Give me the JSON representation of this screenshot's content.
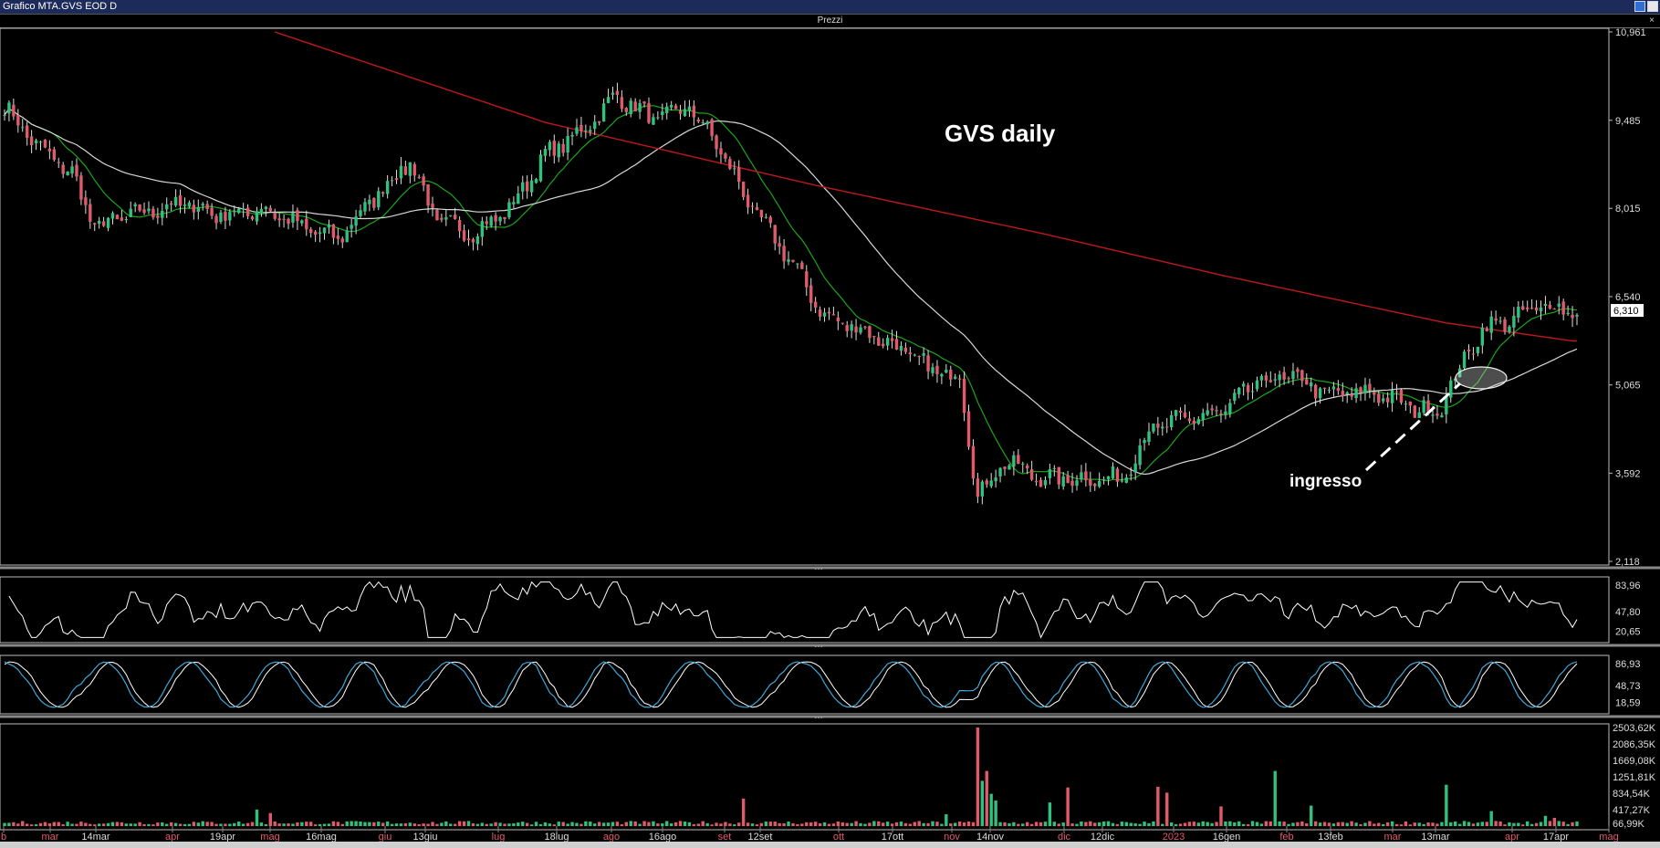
{
  "window": {
    "title": "Grafico MTA.GVS EOD D",
    "panel_title": "Prezzi"
  },
  "annotations": {
    "title": "GVS daily",
    "entry": "ingresso"
  },
  "colors": {
    "up": "#2ec27e",
    "down": "#e05a6a",
    "ma_short": "#1aa51a",
    "ma_mid": "#d8d8d8",
    "ma_long": "#c0181b",
    "osc1": "#ffffff",
    "osc2_a": "#3fa7d6",
    "osc2_b": "#ffffff"
  },
  "chart_data": {
    "type": "candlestick",
    "price_axis": {
      "ticks": [
        "10,961",
        "9,485",
        "8,015",
        "6,540",
        "5,065",
        "3,592",
        "2,118"
      ],
      "min": 2.118,
      "max": 10.961,
      "last_price_label": "6,310",
      "last_price": 6.31
    },
    "dates": [
      "b",
      "mar",
      "14mar",
      "apr",
      "19apr",
      "mag",
      "16mag",
      "giu",
      "13giu",
      "lug",
      "18lug",
      "ago",
      "16ago",
      "set",
      "12set",
      "ott",
      "17ott",
      "nov",
      "14nov",
      "dic",
      "12dic",
      "2023",
      "16gen",
      "feb",
      "13feb",
      "mar",
      "13mar",
      "apr",
      "17apr",
      "mag"
    ],
    "ohlc_anchors": [
      {
        "i": 0,
        "c": 9.7
      },
      {
        "i": 8,
        "c": 9.0
      },
      {
        "i": 15,
        "c": 8.6
      },
      {
        "i": 20,
        "c": 7.7
      },
      {
        "i": 28,
        "c": 7.9
      },
      {
        "i": 40,
        "c": 8.1
      },
      {
        "i": 48,
        "c": 7.9
      },
      {
        "i": 58,
        "c": 8.0
      },
      {
        "i": 66,
        "c": 7.7
      },
      {
        "i": 74,
        "c": 7.5
      },
      {
        "i": 82,
        "c": 8.2
      },
      {
        "i": 90,
        "c": 8.8
      },
      {
        "i": 96,
        "c": 7.8
      },
      {
        "i": 104,
        "c": 7.6
      },
      {
        "i": 112,
        "c": 8.0
      },
      {
        "i": 120,
        "c": 8.9
      },
      {
        "i": 128,
        "c": 9.3
      },
      {
        "i": 136,
        "c": 9.9
      },
      {
        "i": 144,
        "c": 9.5
      },
      {
        "i": 152,
        "c": 9.7
      },
      {
        "i": 158,
        "c": 9.1
      },
      {
        "i": 166,
        "c": 8.0
      },
      {
        "i": 174,
        "c": 7.2
      },
      {
        "i": 182,
        "c": 6.2
      },
      {
        "i": 190,
        "c": 6.0
      },
      {
        "i": 198,
        "c": 5.7
      },
      {
        "i": 206,
        "c": 5.3
      },
      {
        "i": 212,
        "c": 5.2
      },
      {
        "i": 216,
        "c": 3.2
      },
      {
        "i": 222,
        "c": 3.8
      },
      {
        "i": 230,
        "c": 3.5
      },
      {
        "i": 240,
        "c": 3.5
      },
      {
        "i": 248,
        "c": 3.5
      },
      {
        "i": 254,
        "c": 4.3
      },
      {
        "i": 262,
        "c": 4.5
      },
      {
        "i": 270,
        "c": 4.6
      },
      {
        "i": 278,
        "c": 5.1
      },
      {
        "i": 286,
        "c": 5.2
      },
      {
        "i": 294,
        "c": 4.9
      },
      {
        "i": 304,
        "c": 4.95
      },
      {
        "i": 312,
        "c": 4.7
      },
      {
        "i": 318,
        "c": 4.6
      },
      {
        "i": 322,
        "c": 5.2
      },
      {
        "i": 328,
        "c": 6.0
      },
      {
        "i": 336,
        "c": 6.2
      },
      {
        "i": 342,
        "c": 6.4
      },
      {
        "i": 348,
        "c": 6.31
      }
    ],
    "ma_long_anchors": [
      {
        "i": 60,
        "c": 10.961
      },
      {
        "i": 120,
        "c": 9.45
      },
      {
        "i": 180,
        "c": 8.4
      },
      {
        "i": 230,
        "c": 7.6
      },
      {
        "i": 270,
        "c": 6.9
      },
      {
        "i": 320,
        "c": 6.1
      },
      {
        "i": 348,
        "c": 5.8
      }
    ],
    "indicators": [
      {
        "name": "oscillator-1",
        "ticks": [
          "83,96",
          "47,80",
          "20,65"
        ],
        "min": 10,
        "max": 90
      },
      {
        "name": "oscillator-2",
        "ticks": [
          "86,93",
          "48,73",
          "18,59"
        ],
        "min": 5,
        "max": 95
      },
      {
        "name": "volume",
        "ticks": [
          "2503,62K",
          "2086,35K",
          "1669,08K",
          "1251,81K",
          "834,54K",
          "417,27K",
          "66,99K"
        ],
        "min": 0,
        "max": 2503.62
      }
    ],
    "volume_spikes": [
      {
        "i": 216,
        "v": 2503.62
      },
      {
        "i": 217,
        "v": 1150
      },
      {
        "i": 218,
        "v": 1400
      },
      {
        "i": 219,
        "v": 820
      },
      {
        "i": 220,
        "v": 650
      },
      {
        "i": 232,
        "v": 600
      },
      {
        "i": 236,
        "v": 980
      },
      {
        "i": 256,
        "v": 1000
      },
      {
        "i": 258,
        "v": 850
      },
      {
        "i": 270,
        "v": 500
      },
      {
        "i": 282,
        "v": 1400
      },
      {
        "i": 290,
        "v": 520
      },
      {
        "i": 320,
        "v": 1050
      },
      {
        "i": 330,
        "v": 380
      },
      {
        "i": 342,
        "v": 260
      },
      {
        "i": 344,
        "v": 210
      },
      {
        "i": 164,
        "v": 700
      },
      {
        "i": 56,
        "v": 420
      },
      {
        "i": 59,
        "v": 330
      },
      {
        "i": 209,
        "v": 300
      }
    ]
  }
}
